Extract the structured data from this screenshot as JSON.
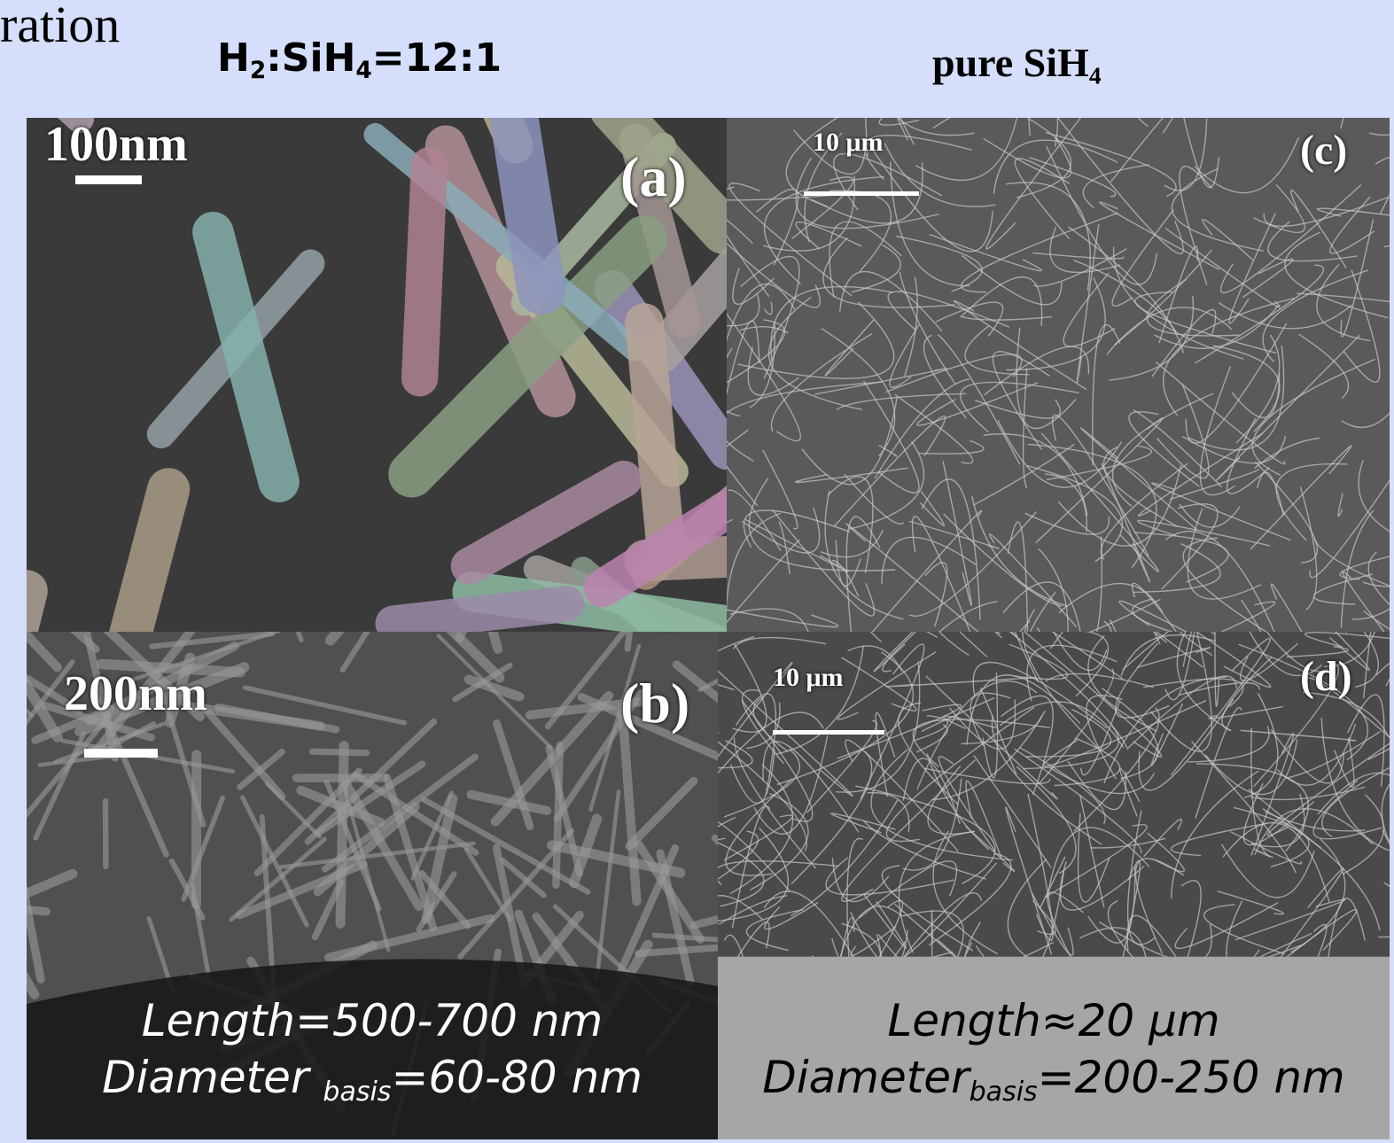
{
  "title_fragment": "ration",
  "headers": {
    "left": [
      {
        "text": "H"
      },
      {
        "text": "2",
        "sub": true
      },
      {
        "text": ":SiH"
      },
      {
        "text": "4",
        "sub": true
      },
      {
        "text": "=12:1"
      }
    ],
    "right": [
      {
        "text": "pure SiH"
      },
      {
        "text": "4",
        "sub": true
      }
    ]
  },
  "panels": [
    {
      "label": "(a)",
      "scale_bar": "100nm"
    },
    {
      "label": "(b)",
      "scale_bar": "200nm",
      "caption": [
        [
          {
            "text": "Length=500-700 nm"
          }
        ],
        [
          {
            "text": "Diameter "
          },
          {
            "text": "basis",
            "sub": true
          },
          {
            "text": "=60-80 nm"
          }
        ]
      ]
    },
    {
      "label": "(c)",
      "scale_bar": "10 μm"
    },
    {
      "label": "(d)",
      "scale_bar": "10 μm",
      "caption": [
        [
          {
            "text": "Length≈20 μm"
          }
        ],
        [
          {
            "text": "Diameter"
          },
          {
            "text": "basis",
            "sub": true
          },
          {
            "text": "=200-250 nm"
          }
        ]
      ]
    }
  ]
}
